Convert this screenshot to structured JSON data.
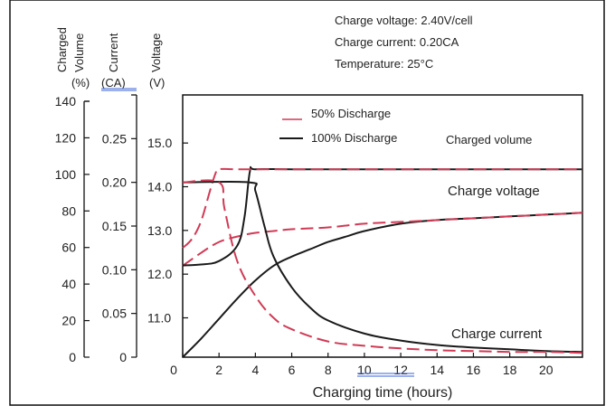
{
  "annotations": {
    "lines": [
      "Charge voltage: 2.40V/cell",
      "Charge current: 0.20CA",
      "Temperature: 25°C"
    ]
  },
  "curve_labels": {
    "charged_volume": "Charged volume",
    "charge_voltage": "Charge voltage",
    "charge_current": "Charge current"
  },
  "colors": {
    "series_50": "#d13a55",
    "series_100": "#1a1a1a",
    "underline": "#3a63d8"
  },
  "chart_data": {
    "type": "line",
    "title": "",
    "xlabel": "Charging time (hours)",
    "xlim": [
      0,
      22
    ],
    "x_ticks": [
      0,
      2,
      4,
      6,
      8,
      10,
      12,
      14,
      16,
      18,
      20
    ],
    "legend": {
      "placement": "top",
      "entries": [
        {
          "label": "50% Discharge",
          "style": "dashed",
          "color": "#d13a55"
        },
        {
          "label": "100% Discharge",
          "style": "solid",
          "color": "#1a1a1a"
        }
      ]
    },
    "y_axes": [
      {
        "key": "volume",
        "title_lines": [
          "Charged",
          "Volume"
        ],
        "unit": "(%)",
        "range": [
          0,
          140
        ],
        "ticks": [
          0,
          20,
          40,
          60,
          80,
          100,
          120,
          140
        ]
      },
      {
        "key": "current",
        "title_lines": [
          "Current"
        ],
        "unit": "(CA)",
        "range": [
          0,
          0.3
        ],
        "ticks": [
          0,
          0.05,
          0.1,
          0.15,
          0.2,
          0.25
        ],
        "tick_labels": [
          "0",
          "0.05",
          "0.10",
          "0.15",
          "0.20",
          "0.25"
        ]
      },
      {
        "key": "voltage",
        "title_lines": [
          "Voltage"
        ],
        "unit": "(V)",
        "range": [
          10.1,
          16.1
        ],
        "ticks": [
          11.0,
          12.0,
          13.0,
          14.0,
          15.0
        ],
        "tick_labels": [
          "11.0",
          "12.0",
          "13.0",
          "14.0",
          "15.0"
        ]
      }
    ],
    "series": [
      {
        "name": "100% Discharge",
        "curve": "Charged volume",
        "axis": "volume",
        "x": [
          0,
          1,
          2,
          3,
          4,
          5,
          6,
          7,
          8,
          9,
          10,
          12,
          14,
          16,
          18,
          20,
          22
        ],
        "values": [
          0,
          10,
          21,
          32,
          42,
          50,
          55,
          59,
          63,
          66,
          69,
          73,
          75,
          76,
          77,
          78,
          79
        ]
      },
      {
        "name": "50% Discharge",
        "curve": "Charged volume",
        "axis": "volume",
        "x": [
          0,
          1,
          2,
          3,
          4,
          5,
          6,
          8,
          10,
          12,
          14,
          16,
          18,
          20,
          22
        ],
        "values": [
          50,
          57,
          63,
          66,
          68,
          69,
          70,
          71,
          73,
          74,
          75,
          76,
          77,
          78,
          79
        ]
      },
      {
        "name": "100% Discharge",
        "curve": "Charge voltage",
        "axis": "voltage",
        "x": [
          0,
          1,
          2,
          3,
          3.4,
          3.7,
          4,
          6,
          10,
          14,
          18,
          22
        ],
        "values": [
          12.2,
          12.22,
          12.3,
          12.65,
          13.3,
          14.35,
          14.4,
          14.4,
          14.4,
          14.4,
          14.4,
          14.4
        ]
      },
      {
        "name": "50% Discharge",
        "curve": "Charge voltage",
        "axis": "voltage",
        "x": [
          0,
          0.5,
          1,
          1.5,
          1.8,
          2,
          3,
          6,
          10,
          14,
          18,
          22
        ],
        "values": [
          12.6,
          12.8,
          13.2,
          13.9,
          14.3,
          14.4,
          14.4,
          14.4,
          14.4,
          14.4,
          14.4,
          14.4
        ]
      },
      {
        "name": "100% Discharge",
        "curve": "Charge current",
        "axis": "current",
        "x": [
          0,
          3.7,
          4,
          4.5,
          5,
          6,
          7,
          8,
          10,
          12,
          14,
          16,
          18,
          20,
          22
        ],
        "values": [
          0.2,
          0.2,
          0.19,
          0.15,
          0.115,
          0.08,
          0.057,
          0.042,
          0.027,
          0.019,
          0.014,
          0.011,
          0.009,
          0.007,
          0.006
        ]
      },
      {
        "name": "50% Discharge",
        "curve": "Charge current",
        "axis": "current",
        "x": [
          0,
          2,
          2.3,
          3,
          4,
          5,
          6,
          8,
          10,
          12,
          14,
          16,
          18,
          20,
          22
        ],
        "values": [
          0.2,
          0.2,
          0.17,
          0.11,
          0.07,
          0.045,
          0.032,
          0.018,
          0.013,
          0.01,
          0.008,
          0.007,
          0.006,
          0.006,
          0.005
        ]
      }
    ]
  }
}
